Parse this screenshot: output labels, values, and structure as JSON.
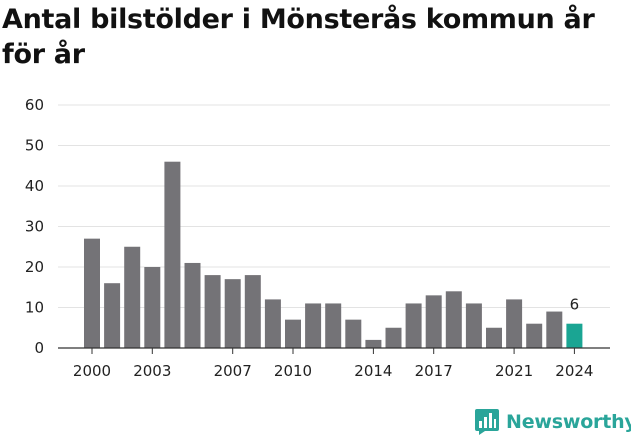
{
  "title": "Antal bilstölder i Mönsterås kommun år för år",
  "brand": {
    "name": "Newsworthy",
    "color": "#2aa59a"
  },
  "colors": {
    "bar": "#747377",
    "highlight": "#1aa593",
    "grid": "#e3e3e3",
    "axis": "#333333"
  },
  "chart_data": {
    "type": "bar",
    "title": "Antal bilstölder i Mönsterås kommun år för år",
    "xlabel": "",
    "ylabel": "",
    "categories": [
      2000,
      2001,
      2002,
      2003,
      2004,
      2005,
      2006,
      2007,
      2008,
      2009,
      2010,
      2011,
      2012,
      2013,
      2014,
      2015,
      2016,
      2017,
      2018,
      2019,
      2020,
      2021,
      2022,
      2023,
      2024
    ],
    "values": [
      27,
      16,
      25,
      20,
      46,
      21,
      18,
      17,
      18,
      12,
      7,
      11,
      11,
      7,
      2,
      5,
      11,
      13,
      14,
      11,
      5,
      12,
      6,
      9,
      6
    ],
    "ylim": [
      0,
      60
    ],
    "yticks": [
      0,
      10,
      20,
      30,
      40,
      50,
      60
    ],
    "xticks": [
      2000,
      2003,
      2007,
      2010,
      2014,
      2017,
      2021,
      2024
    ],
    "grid": true,
    "highlight": {
      "category": 2024,
      "label": "6"
    }
  }
}
